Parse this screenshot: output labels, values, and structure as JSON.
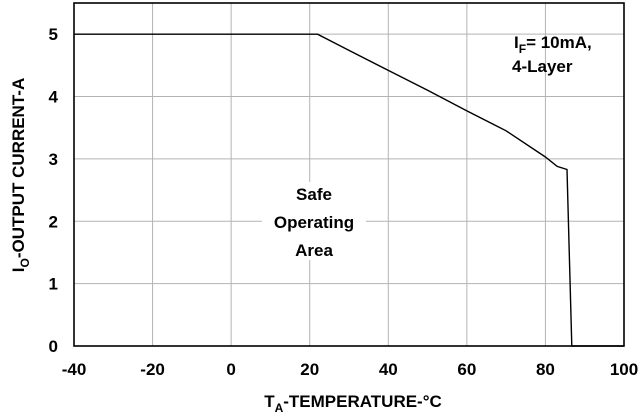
{
  "chart_data": {
    "type": "line",
    "title": "",
    "xlabel": {
      "main": "T",
      "sub": "A",
      "rest": "-TEMPERATURE-°C"
    },
    "ylabel": {
      "main": "I",
      "sub": "O",
      "rest": "-OUTPUT CURRENT-A"
    },
    "xlim": [
      -40,
      100
    ],
    "ylim": [
      0,
      5.5
    ],
    "xticks": [
      "-40",
      "-20",
      "0",
      "20",
      "40",
      "60",
      "80",
      "100"
    ],
    "yticks": [
      "0",
      "1",
      "2",
      "3",
      "4",
      "5"
    ],
    "grid": true,
    "series": [
      {
        "x": [
          -40,
          22,
          30,
          40,
          50,
          60,
          70,
          80,
          83,
          85.5,
          86.7,
          100
        ],
        "y": [
          5.0,
          5.0,
          4.74,
          4.42,
          4.1,
          3.77,
          3.45,
          3.03,
          2.88,
          2.83,
          0,
          0
        ]
      }
    ],
    "annotations": {
      "condition_line1": {
        "main": "I",
        "sub": "F",
        "rest": "= 10mA,"
      },
      "condition_line2": "4-Layer",
      "region_label": [
        "Safe",
        "Operating",
        "Area"
      ]
    }
  }
}
